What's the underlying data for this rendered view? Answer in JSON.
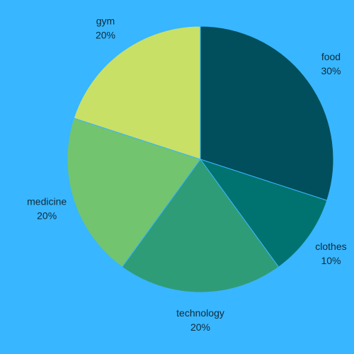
{
  "chart_data": {
    "type": "pie",
    "categories": [
      "food",
      "clothes",
      "technology",
      "medicine",
      "gym"
    ],
    "values": [
      30,
      10,
      20,
      20,
      20
    ],
    "value_labels": [
      "30%",
      "10%",
      "20%",
      "20%",
      "20%"
    ],
    "colors": [
      "#014f5c",
      "#007370",
      "#2f9c78",
      "#72c46f",
      "#c8e066"
    ],
    "start_angle_deg": 0,
    "direction": "clockwise"
  }
}
